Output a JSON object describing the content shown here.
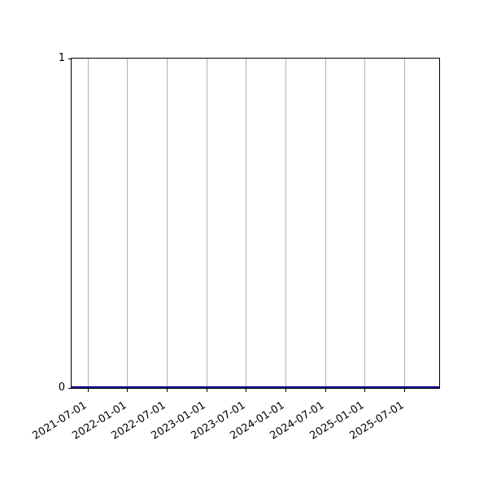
{
  "figure": {
    "background": "#ffffff"
  },
  "axes_style": {
    "spine_color": "#000000",
    "grid_color": "#b0b0b0",
    "tick_color": "#000000",
    "tick_label_color": "#000000"
  },
  "chart_data": {
    "type": "line",
    "title": "",
    "xlabel": "",
    "ylabel": "",
    "x_tick_labels": [
      "2021-07-01",
      "2022-01-01",
      "2022-07-01",
      "2023-01-01",
      "2023-07-01",
      "2024-01-01",
      "2024-07-01",
      "2025-01-01",
      "2025-07-01"
    ],
    "x_tick_rotation_deg": 32,
    "y_tick_labels": [
      "0",
      "1"
    ],
    "y_tick_values": [
      0,
      1
    ],
    "ylim": [
      0,
      1
    ],
    "grid": "vertical-only",
    "legend": "none",
    "series": [
      {
        "name": "series-1",
        "color": "#00008b",
        "x": [
          "2021-07-01",
          "2022-01-01",
          "2022-07-01",
          "2023-01-01",
          "2023-07-01",
          "2024-01-01",
          "2024-07-01",
          "2025-01-01",
          "2025-07-01"
        ],
        "values": [
          0,
          0,
          0,
          0,
          0,
          0,
          0,
          0,
          0
        ]
      }
    ]
  }
}
